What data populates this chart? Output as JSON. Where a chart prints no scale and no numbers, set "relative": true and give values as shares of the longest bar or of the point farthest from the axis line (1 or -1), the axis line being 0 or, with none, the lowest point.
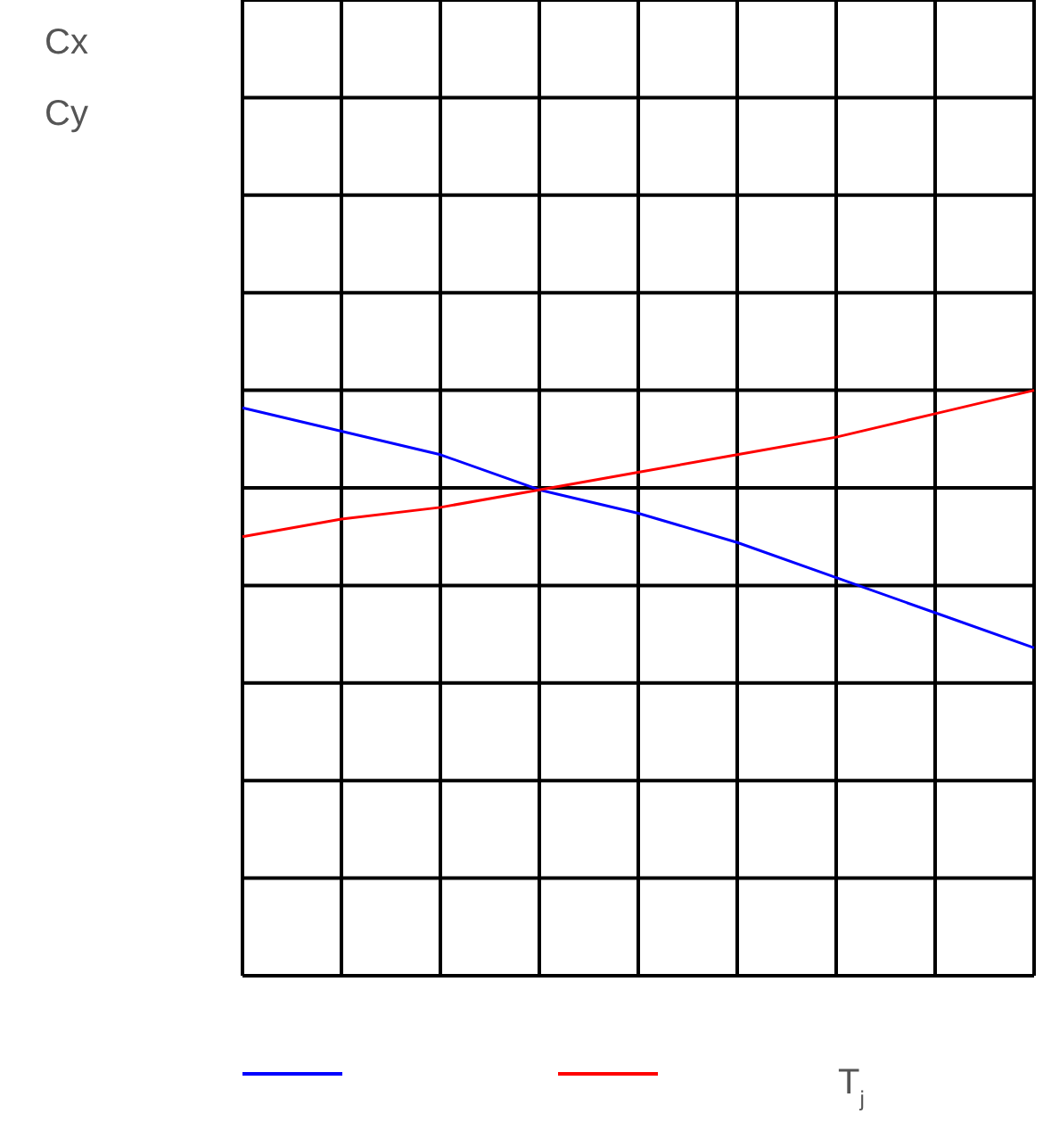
{
  "chart_data": {
    "type": "line",
    "relative": true,
    "categories": [
      null,
      null,
      null,
      null,
      null,
      null,
      null,
      null,
      null
    ],
    "series": [
      {
        "color": "#0000ff",
        "values": [
          0.97,
          0.93,
          0.89,
          0.83,
          0.79,
          0.74,
          0.68,
          0.62,
          0.56
        ]
      },
      {
        "color": "#ff0000",
        "values": [
          0.75,
          0.78,
          0.8,
          0.83,
          0.86,
          0.89,
          0.92,
          0.96,
          1
        ]
      }
    ],
    "xlabel": "T$_{j}$",
    "annotations": [
      "Cx",
      "Cy"
    ],
    "grid": true,
    "marker": "none",
    "line_style": "solid"
  }
}
